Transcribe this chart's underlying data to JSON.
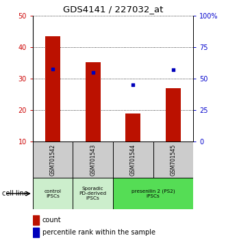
{
  "title": "GDS4141 / 227032_at",
  "samples": [
    "GSM701542",
    "GSM701543",
    "GSM701544",
    "GSM701545"
  ],
  "counts": [
    43.5,
    35.2,
    19.0,
    27.0
  ],
  "percentiles": [
    57.5,
    55.0,
    45.0,
    57.0
  ],
  "ylim_left": [
    10,
    50
  ],
  "ylim_right": [
    0,
    100
  ],
  "yticks_left": [
    10,
    20,
    30,
    40,
    50
  ],
  "yticks_right": [
    0,
    25,
    50,
    75,
    100
  ],
  "ytick_labels_right": [
    "0",
    "25",
    "50",
    "75",
    "100%"
  ],
  "bar_color": "#bb1100",
  "dot_color": "#0000bb",
  "bar_width": 0.38,
  "cell_line_label": "cell line",
  "legend_count_label": "count",
  "legend_percentile_label": "percentile rank within the sample",
  "group_defs": [
    [
      0,
      1,
      "control\nIPSCs",
      "#cceecc"
    ],
    [
      1,
      2,
      "Sporadic\nPD-derived\niPSCs",
      "#cceecc"
    ],
    [
      2,
      4,
      "presenilin 2 (PS2)\niPSCs",
      "#55dd55"
    ]
  ]
}
